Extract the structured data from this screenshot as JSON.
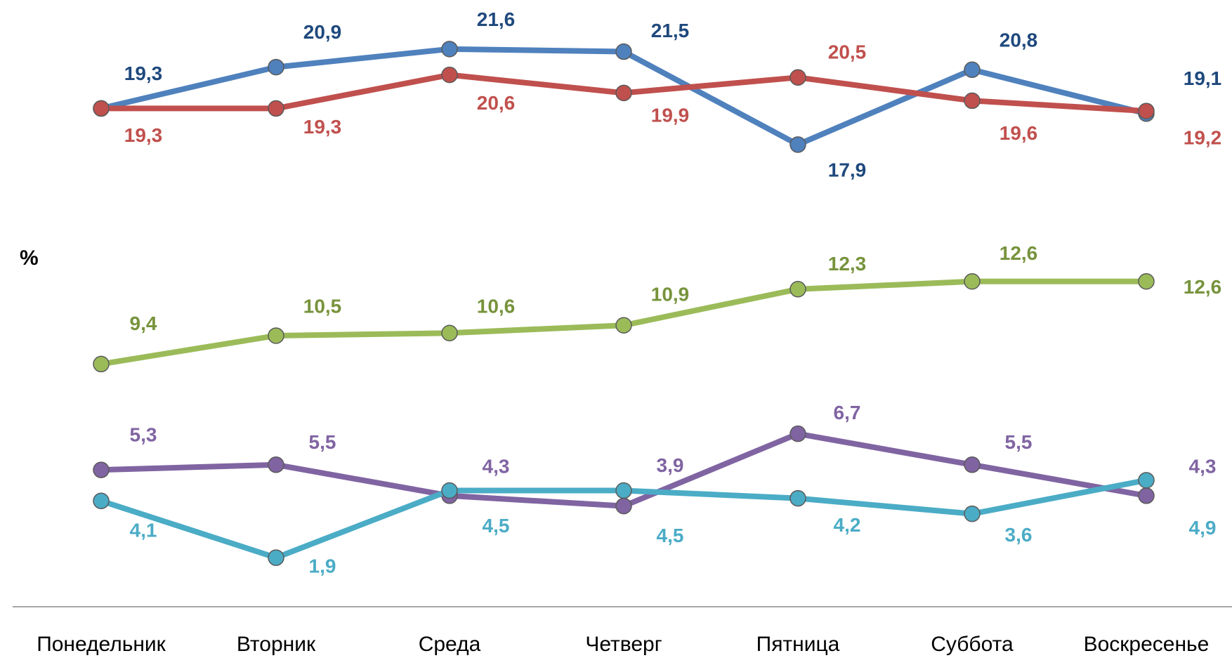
{
  "chart_data": {
    "type": "line",
    "y_label": "%",
    "categories": [
      "Понедельник",
      "Вторник",
      "Среда",
      "Четверг",
      "Пятница",
      "Суббота",
      "Воскресенье"
    ],
    "ylim": [
      0,
      23.5
    ],
    "series": [
      {
        "color": "#4f81bd",
        "label_color": "#1f497d",
        "values": [
          19.3,
          20.9,
          21.6,
          21.5,
          17.9,
          20.8,
          19.1
        ],
        "value_labels": [
          "19,3",
          "20,9",
          "21,6",
          "21,5",
          "17,9",
          "20,8",
          "19,1"
        ]
      },
      {
        "color": "#c0504d",
        "label_color": "#c0504d",
        "values": [
          19.3,
          19.3,
          20.6,
          19.9,
          20.5,
          19.6,
          19.2
        ],
        "value_labels": [
          "19,3",
          "19,3",
          "20,6",
          "19,9",
          "20,5",
          "19,6",
          "19,2"
        ]
      },
      {
        "color": "#9bbb59",
        "label_color": "#77933c",
        "values": [
          9.4,
          10.5,
          10.6,
          10.9,
          12.3,
          12.6,
          12.6
        ],
        "value_labels": [
          "9,4",
          "10,5",
          "10,6",
          "10,9",
          "12,3",
          "12,6",
          "12,6"
        ]
      },
      {
        "color": "#8064a2",
        "label_color": "#8064a2",
        "values": [
          5.3,
          5.5,
          4.3,
          3.9,
          6.7,
          5.5,
          4.3
        ],
        "value_labels": [
          "5,3",
          "5,5",
          "4,3",
          "3,9",
          "6,7",
          "5,5",
          "4,3"
        ]
      },
      {
        "color": "#4bacc6",
        "label_color": "#4bacc6",
        "values": [
          4.1,
          1.9,
          4.5,
          4.5,
          4.2,
          3.6,
          4.9
        ],
        "value_labels": [
          "4,1",
          "1,9",
          "4,5",
          "4,5",
          "4,2",
          "3,6",
          "4,9"
        ]
      }
    ]
  }
}
